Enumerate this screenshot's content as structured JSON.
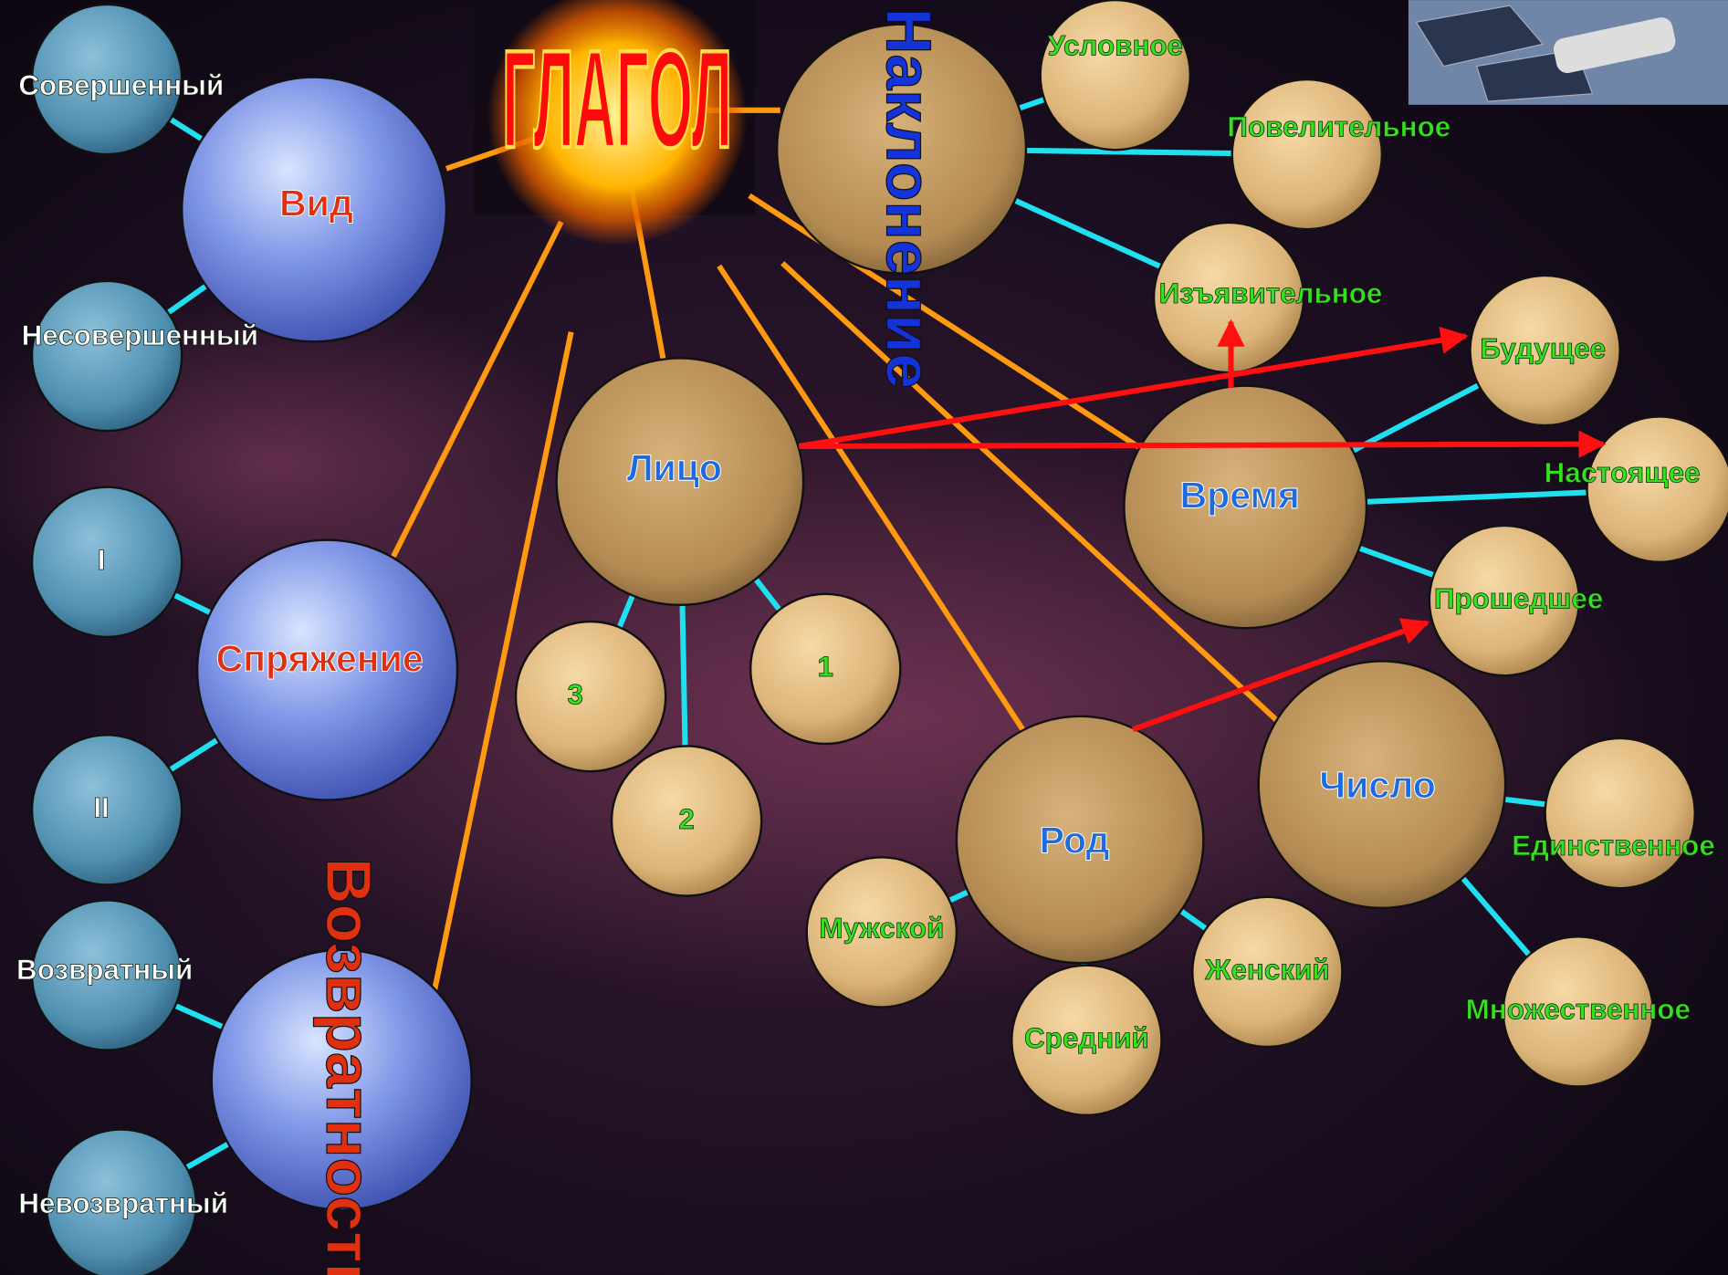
{
  "title": "ГЛАГОЛ",
  "groups": [
    {
      "label": "Вид",
      "items": [
        "Совершенный",
        "Несовершенный"
      ]
    },
    {
      "label": "Спряжение",
      "items": [
        "I",
        "II"
      ]
    },
    {
      "label": "Возвратность",
      "items": [
        "Возвратный",
        "Невозвратный"
      ]
    },
    {
      "label": "Наклонение",
      "items": [
        "Условное",
        "Повелительное",
        "Изъявительное"
      ]
    },
    {
      "label": "Лицо",
      "items": [
        "3",
        "2",
        "1"
      ]
    },
    {
      "label": "Время",
      "items": [
        "Будущее",
        "Настоящее",
        "Прошедшее"
      ]
    },
    {
      "label": "Род",
      "items": [
        "Мужской",
        "Средний",
        "Женский"
      ]
    },
    {
      "label": "Число",
      "items": [
        "Единственное",
        "Множественное"
      ]
    }
  ]
}
